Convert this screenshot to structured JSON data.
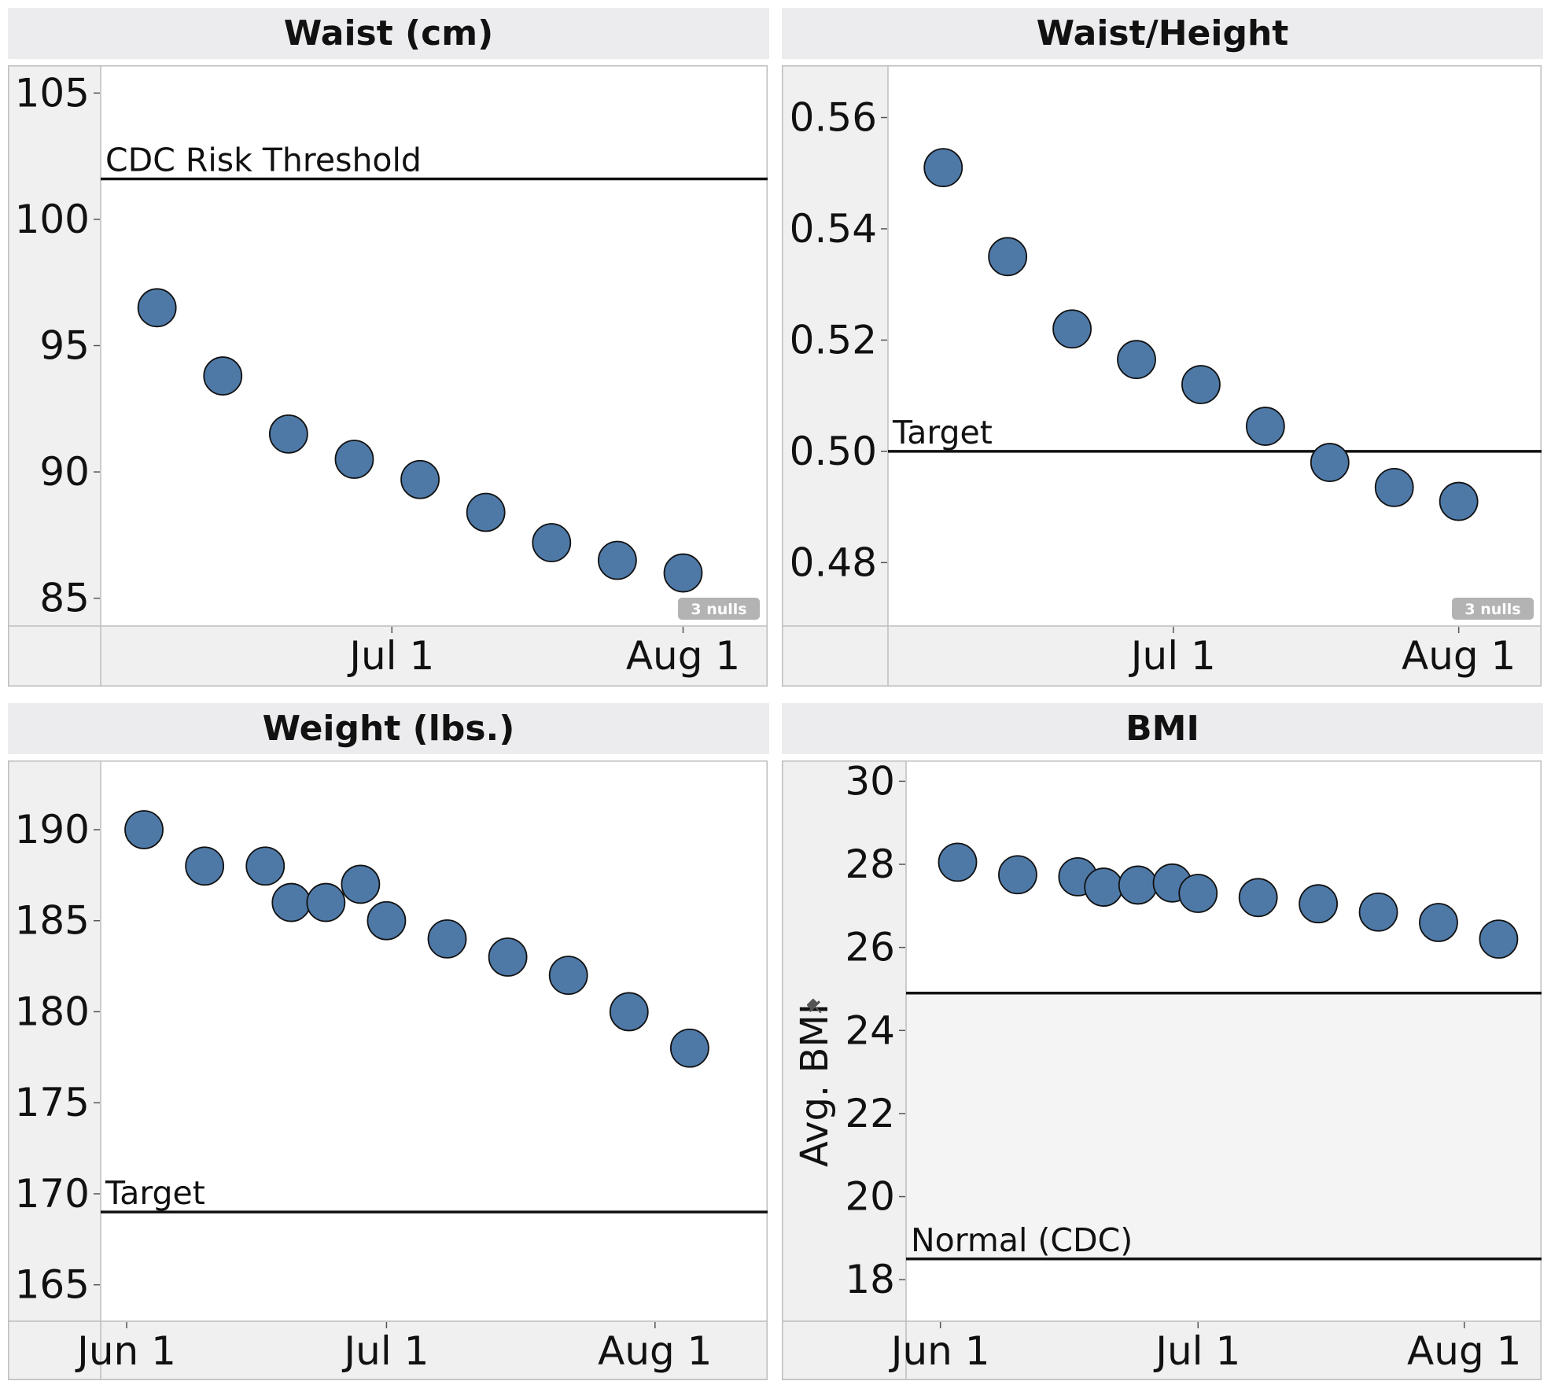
{
  "chart_data": [
    {
      "id": "waist",
      "type": "scatter",
      "title": "Waist (cm)",
      "xlabel": "",
      "ylabel": "",
      "x_ticks": [
        "Jul 1",
        "Aug 1"
      ],
      "y_ticks": [
        "85",
        "90",
        "95",
        "100",
        "105"
      ],
      "ylim": [
        83.9,
        106.1
      ],
      "points": [
        {
          "x": "2014-06-06",
          "y": 96.5
        },
        {
          "x": "2014-06-13",
          "y": 93.8
        },
        {
          "x": "2014-06-20",
          "y": 91.5
        },
        {
          "x": "2014-06-27",
          "y": 90.5
        },
        {
          "x": "2014-07-04",
          "y": 89.7
        },
        {
          "x": "2014-07-11",
          "y": 88.4
        },
        {
          "x": "2014-07-18",
          "y": 87.2
        },
        {
          "x": "2014-07-25",
          "y": 86.5
        },
        {
          "x": "2014-08-01",
          "y": 86.0
        }
      ],
      "reference_lines": [
        {
          "label": "CDC Risk Threshold",
          "y": 101.6
        }
      ],
      "nulls_badge": "3 nulls",
      "grid": false
    },
    {
      "id": "waist_height",
      "type": "scatter",
      "title": "Waist/Height",
      "xlabel": "",
      "ylabel": "",
      "x_ticks": [
        "Jul 1",
        "Aug 1"
      ],
      "y_ticks": [
        "0.48",
        "0.50",
        "0.52",
        "0.54",
        "0.56"
      ],
      "ylim": [
        0.4686,
        0.5694
      ],
      "points": [
        {
          "x": "2014-06-06",
          "y": 0.551
        },
        {
          "x": "2014-06-13",
          "y": 0.535
        },
        {
          "x": "2014-06-20",
          "y": 0.522
        },
        {
          "x": "2014-06-27",
          "y": 0.5165
        },
        {
          "x": "2014-07-04",
          "y": 0.512
        },
        {
          "x": "2014-07-11",
          "y": 0.5045
        },
        {
          "x": "2014-07-18",
          "y": 0.498
        },
        {
          "x": "2014-07-25",
          "y": 0.4935
        },
        {
          "x": "2014-08-01",
          "y": 0.491
        }
      ],
      "reference_lines": [
        {
          "label": "Target",
          "y": 0.5
        }
      ],
      "nulls_badge": "3 nulls",
      "grid": false
    },
    {
      "id": "weight",
      "type": "scatter",
      "title": "Weight (lbs.)",
      "xlabel": "",
      "ylabel": "",
      "x_ticks": [
        "Jun 1",
        "Jul 1",
        "Aug 1"
      ],
      "y_ticks": [
        "165",
        "170",
        "175",
        "180",
        "185",
        "190"
      ],
      "ylim": [
        163.0,
        193.8
      ],
      "points": [
        {
          "x": "2014-06-03",
          "y": 190
        },
        {
          "x": "2014-06-10",
          "y": 188
        },
        {
          "x": "2014-06-17",
          "y": 188
        },
        {
          "x": "2014-06-20",
          "y": 186
        },
        {
          "x": "2014-06-24",
          "y": 186
        },
        {
          "x": "2014-06-28",
          "y": 187
        },
        {
          "x": "2014-07-01",
          "y": 185
        },
        {
          "x": "2014-07-08",
          "y": 184
        },
        {
          "x": "2014-07-15",
          "y": 183
        },
        {
          "x": "2014-07-22",
          "y": 182
        },
        {
          "x": "2014-07-29",
          "y": 180
        },
        {
          "x": "2014-08-05",
          "y": 178
        }
      ],
      "reference_lines": [
        {
          "label": "Target",
          "y": 169
        }
      ],
      "grid": false
    },
    {
      "id": "bmi",
      "type": "scatter",
      "title": "BMI",
      "xlabel": "",
      "ylabel": "Avg. BMI",
      "x_ticks": [
        "Jun 1",
        "Jul 1",
        "Aug 1"
      ],
      "y_ticks": [
        "18",
        "20",
        "22",
        "24",
        "26",
        "28",
        "30"
      ],
      "ylim": [
        17.0,
        30.5
      ],
      "points": [
        {
          "x": "2014-06-03",
          "y": 28.05
        },
        {
          "x": "2014-06-10",
          "y": 27.75
        },
        {
          "x": "2014-06-17",
          "y": 27.7
        },
        {
          "x": "2014-06-20",
          "y": 27.45
        },
        {
          "x": "2014-06-24",
          "y": 27.5
        },
        {
          "x": "2014-06-28",
          "y": 27.55
        },
        {
          "x": "2014-07-01",
          "y": 27.3
        },
        {
          "x": "2014-07-08",
          "y": 27.2
        },
        {
          "x": "2014-07-15",
          "y": 27.05
        },
        {
          "x": "2014-07-22",
          "y": 26.85
        },
        {
          "x": "2014-07-29",
          "y": 26.6
        },
        {
          "x": "2014-08-05",
          "y": 26.2
        }
      ],
      "reference_lines": [
        {
          "label": "",
          "y": 24.9
        },
        {
          "label": "Normal (CDC)",
          "y": 18.5
        }
      ],
      "reference_band": {
        "from": 18.5,
        "to": 24.9
      },
      "grid": false
    }
  ],
  "colors": {
    "marker_fill": "#4e79a7",
    "marker_stroke": "#111111",
    "header_bg": "#ececef",
    "axis_bg": "#f0f0f0",
    "band_fill": "#f4f4f4",
    "badge_bg": "#b3b3b3",
    "line": "#111111"
  },
  "icons": {
    "ylabel_marker": "pin-icon"
  }
}
